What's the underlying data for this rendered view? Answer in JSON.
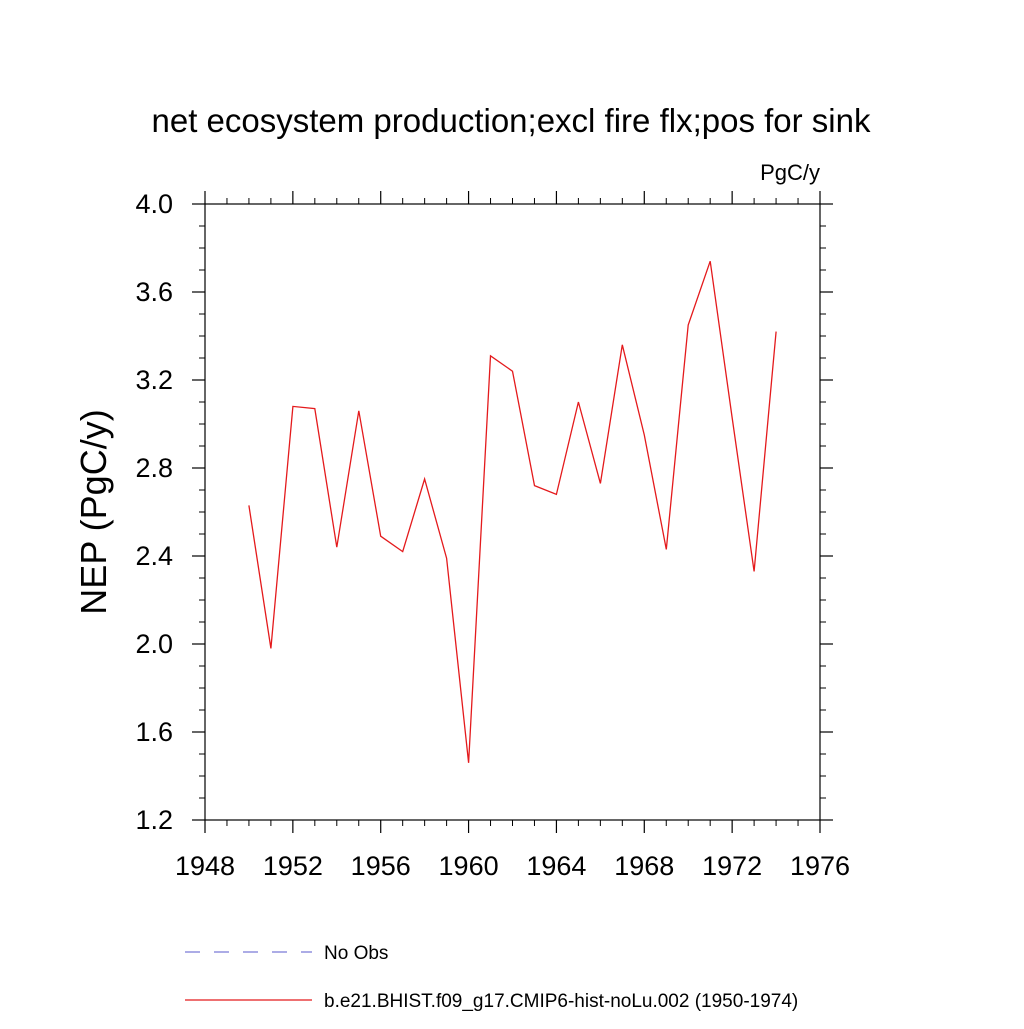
{
  "chart_data": {
    "type": "line",
    "title": "net ecosystem production;excl fire flx;pos for sink",
    "units_label": "PgC/y",
    "ylabel": "NEP  (PgC/y)",
    "xlabel": "",
    "xlim": [
      1948,
      1976
    ],
    "ylim": [
      1.2,
      4.0
    ],
    "x_ticks": [
      "1948",
      "1952",
      "1956",
      "1960",
      "1964",
      "1968",
      "1972",
      "1976"
    ],
    "y_ticks": [
      "4.0",
      "3.6",
      "3.2",
      "2.8",
      "2.4",
      "2.0",
      "1.6",
      "1.2"
    ],
    "grid": false,
    "legend_position": "bottom",
    "series": [
      {
        "name": "No Obs",
        "color": "#7b7bd6",
        "style": "dashed",
        "x": [],
        "y": []
      },
      {
        "name": "b.e21.BHIST.f09_g17.CMIP6-hist-noLu.002 (1950-1974)",
        "color": "#e41a1c",
        "style": "solid",
        "x": [
          1950,
          1951,
          1952,
          1953,
          1954,
          1955,
          1956,
          1957,
          1958,
          1959,
          1960,
          1961,
          1962,
          1963,
          1964,
          1965,
          1966,
          1967,
          1968,
          1969,
          1970,
          1971,
          1972,
          1973,
          1974
        ],
        "y": [
          2.63,
          1.98,
          3.08,
          3.07,
          2.44,
          3.06,
          2.49,
          2.42,
          2.75,
          2.39,
          1.46,
          3.31,
          3.24,
          2.72,
          2.68,
          3.1,
          2.73,
          3.36,
          2.95,
          2.43,
          3.45,
          3.74,
          3.03,
          2.33,
          3.42
        ]
      }
    ]
  }
}
